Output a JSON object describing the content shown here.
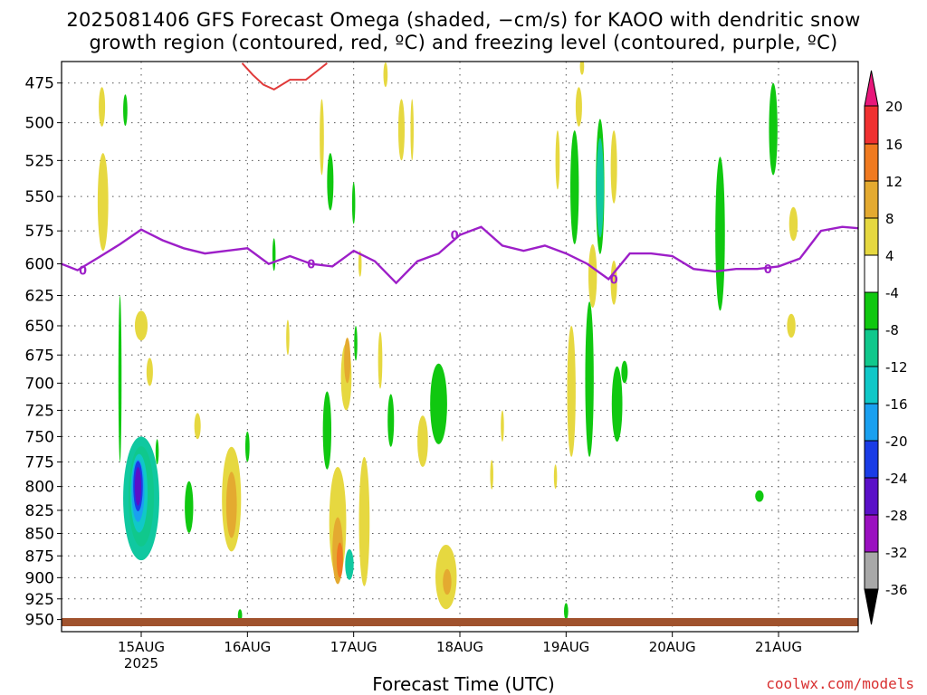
{
  "title_line1": "2025081406 GFS Forecast Omega (shaded, −cm/s) for KAOO with dendritic snow",
  "title_line2": "growth region (contoured, red, ºC) and freezing level (contoured, purple, ºC)",
  "xlabel": "Forecast Time (UTC)",
  "credit": "coolwx.com/models",
  "colors": {
    "freezing_line": "#9d1fc8",
    "dgz_line": "#e03a3a",
    "ground": "#a0522d",
    "grid": "#555555"
  },
  "chart_data": {
    "type": "heatmap",
    "title": "2025081406 GFS Forecast Omega (shaded, −cm/s) for KAOO with dendritic snow growth region (contoured, red, ºC) and freezing level (contoured, purple, ºC)",
    "xlabel": "Forecast Time (UTC)",
    "ylabel": "",
    "y_scale": "log",
    "ylim": [
      965,
      462
    ],
    "xlim": [
      "2025-08-14T06Z",
      "2025-08-21T18Z"
    ],
    "y_ticks": [
      475,
      500,
      525,
      550,
      575,
      600,
      625,
      650,
      675,
      700,
      725,
      750,
      775,
      800,
      825,
      850,
      875,
      900,
      925,
      950
    ],
    "x_ticks": [
      {
        "label": "15AUG",
        "sublabel": "2025",
        "day": 15
      },
      {
        "label": "16AUG",
        "sublabel": "",
        "day": 16
      },
      {
        "label": "17AUG",
        "sublabel": "",
        "day": 17
      },
      {
        "label": "18AUG",
        "sublabel": "",
        "day": 18
      },
      {
        "label": "19AUG",
        "sublabel": "",
        "day": 19
      },
      {
        "label": "20AUG",
        "sublabel": "",
        "day": 20
      },
      {
        "label": "21AUG",
        "sublabel": "",
        "day": 21
      }
    ],
    "grid": true,
    "colorbar": {
      "labels": [
        20,
        16,
        12,
        8,
        4,
        -4,
        -8,
        -12,
        -16,
        -20,
        -24,
        -28,
        -32,
        -36
      ],
      "colors": [
        "#e8177a",
        "#f03030",
        "#f07a20",
        "#e4aa30",
        "#e6d840",
        "#ffffff",
        "#10c810",
        "#10c88c",
        "#10c8c8",
        "#1aa0f0",
        "#1a3ce6",
        "#5a10c8",
        "#9a10c0",
        "#a8a8a8",
        "#000000"
      ]
    },
    "freezing_level_0C": {
      "label": "0",
      "x": [
        14.25,
        14.4,
        14.6,
        14.8,
        15.0,
        15.2,
        15.4,
        15.6,
        15.8,
        16.0,
        16.2,
        16.4,
        16.6,
        16.8,
        17.0,
        17.2,
        17.4,
        17.6,
        17.8,
        18.0,
        18.2,
        18.4,
        18.6,
        18.8,
        19.0,
        19.2,
        19.4,
        19.6,
        19.8,
        20.0,
        20.2,
        20.4,
        20.6,
        20.8,
        21.0,
        21.2,
        21.4,
        21.6,
        21.75
      ],
      "y": [
        600,
        605,
        595,
        585,
        574,
        582,
        588,
        592,
        590,
        588,
        600,
        594,
        600,
        602,
        590,
        598,
        615,
        598,
        592,
        578,
        572,
        586,
        590,
        586,
        592,
        600,
        612,
        592,
        592,
        594,
        604,
        606,
        604,
        604,
        602,
        596,
        575,
        572,
        573
      ]
    },
    "dgz_contour": {
      "x": [
        15.95,
        16.05,
        16.15,
        16.25,
        16.4,
        16.55,
        16.65,
        16.75
      ],
      "y": [
        463,
        470,
        476,
        479,
        473,
        473,
        468,
        463
      ]
    },
    "omega_cells": [
      {
        "t": 15.0,
        "p": 815,
        "dt": 0.17,
        "dp": 130,
        "v": -8
      },
      {
        "t": 15.0,
        "p": 812,
        "dt": 0.12,
        "dp": 105,
        "v": -12
      },
      {
        "t": 14.98,
        "p": 808,
        "dt": 0.08,
        "dp": 82,
        "v": -16
      },
      {
        "t": 14.97,
        "p": 805,
        "dt": 0.06,
        "dp": 65,
        "v": -20
      },
      {
        "t": 14.97,
        "p": 800,
        "dt": 0.045,
        "dp": 52,
        "v": -24
      },
      {
        "t": 14.97,
        "p": 800,
        "dt": 0.03,
        "dp": 40,
        "v": -28
      },
      {
        "t": 14.64,
        "p": 555,
        "dt": 0.05,
        "dp": 70,
        "v": 4
      },
      {
        "t": 14.63,
        "p": 490,
        "dt": 0.03,
        "dp": 25,
        "v": 4
      },
      {
        "t": 14.85,
        "p": 492,
        "dt": 0.02,
        "dp": 20,
        "v": -4
      },
      {
        "t": 14.8,
        "p": 700,
        "dt": 0.015,
        "dp": 150,
        "v": -4
      },
      {
        "t": 15.0,
        "p": 650,
        "dt": 0.06,
        "dp": 25,
        "v": 4
      },
      {
        "t": 15.08,
        "p": 690,
        "dt": 0.03,
        "dp": 25,
        "v": 4
      },
      {
        "t": 15.15,
        "p": 765,
        "dt": 0.015,
        "dp": 25,
        "v": -4
      },
      {
        "t": 15.45,
        "p": 822,
        "dt": 0.04,
        "dp": 55,
        "v": -4
      },
      {
        "t": 15.53,
        "p": 740,
        "dt": 0.03,
        "dp": 25,
        "v": 4
      },
      {
        "t": 15.85,
        "p": 815,
        "dt": 0.09,
        "dp": 110,
        "v": 4
      },
      {
        "t": 15.85,
        "p": 820,
        "dt": 0.05,
        "dp": 70,
        "v": 8
      },
      {
        "t": 16.0,
        "p": 760,
        "dt": 0.02,
        "dp": 30,
        "v": -4
      },
      {
        "t": 15.93,
        "p": 945,
        "dt": 0.02,
        "dp": 15,
        "v": -4
      },
      {
        "t": 16.25,
        "p": 593,
        "dt": 0.015,
        "dp": 25,
        "v": -4
      },
      {
        "t": 16.38,
        "p": 660,
        "dt": 0.015,
        "dp": 30,
        "v": 4
      },
      {
        "t": 16.7,
        "p": 510,
        "dt": 0.02,
        "dp": 50,
        "v": 4
      },
      {
        "t": 16.78,
        "p": 540,
        "dt": 0.03,
        "dp": 40,
        "v": -4
      },
      {
        "t": 16.85,
        "p": 840,
        "dt": 0.08,
        "dp": 120,
        "v": 4
      },
      {
        "t": 16.85,
        "p": 870,
        "dt": 0.05,
        "dp": 75,
        "v": 8
      },
      {
        "t": 16.87,
        "p": 880,
        "dt": 0.03,
        "dp": 40,
        "v": 12
      },
      {
        "t": 16.75,
        "p": 745,
        "dt": 0.04,
        "dp": 75,
        "v": -4
      },
      {
        "t": 16.93,
        "p": 695,
        "dt": 0.05,
        "dp": 60,
        "v": 4
      },
      {
        "t": 16.94,
        "p": 680,
        "dt": 0.03,
        "dp": 40,
        "v": 8
      },
      {
        "t": 16.96,
        "p": 885,
        "dt": 0.04,
        "dp": 35,
        "v": -8
      },
      {
        "t": 17.1,
        "p": 840,
        "dt": 0.05,
        "dp": 140,
        "v": 4
      },
      {
        "t": 17.0,
        "p": 555,
        "dt": 0.015,
        "dp": 30,
        "v": -4
      },
      {
        "t": 17.02,
        "p": 665,
        "dt": 0.015,
        "dp": 30,
        "v": -4
      },
      {
        "t": 17.06,
        "p": 600,
        "dt": 0.015,
        "dp": 20,
        "v": 4
      },
      {
        "t": 17.25,
        "p": 680,
        "dt": 0.02,
        "dp": 50,
        "v": 4
      },
      {
        "t": 17.35,
        "p": 735,
        "dt": 0.03,
        "dp": 50,
        "v": -4
      },
      {
        "t": 17.45,
        "p": 505,
        "dt": 0.03,
        "dp": 40,
        "v": 4
      },
      {
        "t": 17.65,
        "p": 755,
        "dt": 0.05,
        "dp": 50,
        "v": 4
      },
      {
        "t": 17.8,
        "p": 720,
        "dt": 0.08,
        "dp": 75,
        "v": -4
      },
      {
        "t": 17.87,
        "p": 900,
        "dt": 0.1,
        "dp": 75,
        "v": 4
      },
      {
        "t": 17.88,
        "p": 905,
        "dt": 0.04,
        "dp": 30,
        "v": 8
      },
      {
        "t": 17.3,
        "p": 470,
        "dt": 0.02,
        "dp": 15,
        "v": 4
      },
      {
        "t": 18.3,
        "p": 788,
        "dt": 0.015,
        "dp": 30,
        "v": 4
      },
      {
        "t": 18.9,
        "p": 790,
        "dt": 0.015,
        "dp": 25,
        "v": 4
      },
      {
        "t": 18.92,
        "p": 525,
        "dt": 0.02,
        "dp": 40,
        "v": 4
      },
      {
        "t": 19.05,
        "p": 710,
        "dt": 0.04,
        "dp": 120,
        "v": 4
      },
      {
        "t": 19.0,
        "p": 940,
        "dt": 0.02,
        "dp": 20,
        "v": -4
      },
      {
        "t": 19.08,
        "p": 545,
        "dt": 0.04,
        "dp": 80,
        "v": -4
      },
      {
        "t": 19.12,
        "p": 490,
        "dt": 0.03,
        "dp": 25,
        "v": 4
      },
      {
        "t": 19.22,
        "p": 700,
        "dt": 0.04,
        "dp": 140,
        "v": -4
      },
      {
        "t": 19.25,
        "p": 610,
        "dt": 0.04,
        "dp": 50,
        "v": 4
      },
      {
        "t": 19.32,
        "p": 545,
        "dt": 0.04,
        "dp": 95,
        "v": -4
      },
      {
        "t": 19.32,
        "p": 545,
        "dt": 0.035,
        "dp": 70,
        "v": -8
      },
      {
        "t": 19.45,
        "p": 530,
        "dt": 0.03,
        "dp": 50,
        "v": 4
      },
      {
        "t": 19.45,
        "p": 615,
        "dt": 0.03,
        "dp": 35,
        "v": 4
      },
      {
        "t": 19.48,
        "p": 720,
        "dt": 0.05,
        "dp": 70,
        "v": -4
      },
      {
        "t": 19.55,
        "p": 690,
        "dt": 0.03,
        "dp": 20,
        "v": -4
      },
      {
        "t": 19.15,
        "p": 465,
        "dt": 0.02,
        "dp": 10,
        "v": 4
      },
      {
        "t": 20.45,
        "p": 580,
        "dt": 0.045,
        "dp": 115,
        "v": -4
      },
      {
        "t": 20.95,
        "p": 505,
        "dt": 0.04,
        "dp": 60,
        "v": -4
      },
      {
        "t": 20.82,
        "p": 810,
        "dt": 0.04,
        "dp": 12,
        "v": -4
      },
      {
        "t": 21.14,
        "p": 570,
        "dt": 0.04,
        "dp": 25,
        "v": 4
      },
      {
        "t": 21.12,
        "p": 650,
        "dt": 0.04,
        "dp": 20,
        "v": 4
      },
      {
        "t": 18.4,
        "p": 740,
        "dt": 0.015,
        "dp": 30,
        "v": 4
      },
      {
        "t": 17.55,
        "p": 505,
        "dt": 0.015,
        "dp": 40,
        "v": 4
      }
    ]
  }
}
